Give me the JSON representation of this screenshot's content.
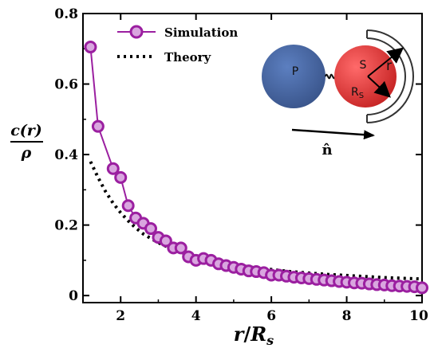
{
  "chart_data": {
    "type": "line",
    "xlabel": "r/R_s",
    "ylabel_num": "c(r)",
    "ylabel_den": "ρ",
    "xlim": [
      1,
      10
    ],
    "ylim": [
      -0.02,
      0.8
    ],
    "x_ticks": [
      2,
      4,
      6,
      8,
      10
    ],
    "y_ticks": [
      0,
      0.2,
      0.4,
      0.6,
      0.8
    ],
    "x_tick_labels": [
      "2",
      "4",
      "6",
      "8",
      "10"
    ],
    "y_tick_labels": [
      "0",
      "0.2",
      "0.4",
      "0.6",
      "0.8"
    ],
    "legend_position": "top-left",
    "series": [
      {
        "name": "Simulation",
        "style": "line-with-circles",
        "color": "#9b1fa0",
        "fill": "#d9a6df",
        "x": [
          1.2,
          1.4,
          1.8,
          2.0,
          2.2,
          2.4,
          2.6,
          2.8,
          3.0,
          3.2,
          3.4,
          3.6,
          3.8,
          4.0,
          4.2,
          4.4,
          4.6,
          4.8,
          5.0,
          5.2,
          5.4,
          5.6,
          5.8,
          6.0,
          6.2,
          6.4,
          6.6,
          6.8,
          7.0,
          7.2,
          7.4,
          7.6,
          7.8,
          8.0,
          8.2,
          8.4,
          8.6,
          8.8,
          9.0,
          9.2,
          9.4,
          9.6,
          9.8,
          10.0
        ],
        "y": [
          0.705,
          0.48,
          0.36,
          0.335,
          0.255,
          0.22,
          0.205,
          0.19,
          0.165,
          0.155,
          0.135,
          0.135,
          0.11,
          0.1,
          0.105,
          0.1,
          0.09,
          0.085,
          0.08,
          0.075,
          0.07,
          0.068,
          0.065,
          0.058,
          0.058,
          0.055,
          0.052,
          0.05,
          0.048,
          0.046,
          0.044,
          0.042,
          0.04,
          0.038,
          0.036,
          0.035,
          0.033,
          0.031,
          0.03,
          0.028,
          0.027,
          0.026,
          0.025,
          0.022
        ]
      },
      {
        "name": "Theory",
        "style": "dotted",
        "color": "#000000",
        "x": [
          1.2,
          1.4,
          1.6,
          1.8,
          2.0,
          2.2,
          2.4,
          2.6,
          2.8,
          3.0,
          3.2,
          3.4,
          3.6,
          3.8,
          4.0,
          4.5,
          5.0,
          5.5,
          6.0,
          6.5,
          7.0,
          7.5,
          8.0,
          8.5,
          9.0,
          9.5,
          10.0
        ],
        "y": [
          0.38,
          0.335,
          0.295,
          0.262,
          0.235,
          0.212,
          0.192,
          0.175,
          0.162,
          0.15,
          0.14,
          0.131,
          0.123,
          0.116,
          0.11,
          0.097,
          0.088,
          0.08,
          0.074,
          0.068,
          0.064,
          0.06,
          0.057,
          0.054,
          0.051,
          0.049,
          0.047
        ]
      }
    ]
  },
  "inset": {
    "label_p": "P",
    "label_s": "S",
    "label_r": "r",
    "label_rs": "R",
    "label_rs_sub": "S",
    "label_n": "n̂",
    "color_p": "#4a6aa6",
    "color_s": "#e23a3a"
  }
}
